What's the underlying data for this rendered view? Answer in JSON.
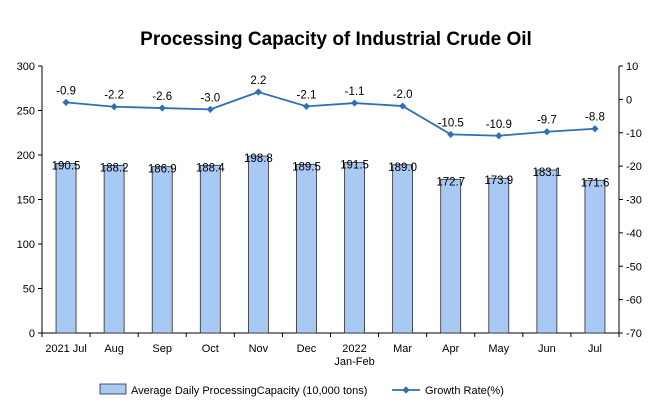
{
  "chart_data": {
    "type": "bar",
    "title": "Processing Capacity of Industrial Crude Oil",
    "categories": [
      "2021 Jul",
      "Aug",
      "Sep",
      "Oct",
      "Nov",
      "Dec",
      "2022\nJan-Feb",
      "Mar",
      "Apr",
      "May",
      "Jun",
      "Jul"
    ],
    "series": [
      {
        "name": "Average Daily ProcessingCapacity (10,000 tons)",
        "type": "bar",
        "axis": "left",
        "values": [
          190.5,
          188.2,
          186.9,
          188.4,
          198.8,
          189.5,
          191.5,
          189.0,
          172.7,
          173.9,
          183.1,
          171.6
        ],
        "labels": [
          "190.5",
          "188.2",
          "186.9",
          "188.4",
          "198.8",
          "189.5",
          "191.5",
          "189.0",
          "172.7",
          "173.9",
          "183.1",
          "171.6"
        ]
      },
      {
        "name": "Growth Rate(%)",
        "type": "line",
        "axis": "right",
        "values": [
          -0.9,
          -2.2,
          -2.6,
          -3.0,
          2.2,
          -2.1,
          -1.1,
          -2.0,
          -10.5,
          -10.9,
          -9.7,
          -8.8
        ],
        "labels": [
          "-0.9",
          "-2.2",
          "-2.6",
          "-3.0",
          "2.2",
          "-2.1",
          "-1.1",
          "-2.0",
          "-10.5",
          "-10.9",
          "-9.7",
          "-8.8"
        ]
      }
    ],
    "y_left": {
      "ylim": [
        0,
        300
      ],
      "ticks": [
        0,
        50,
        100,
        150,
        200,
        250,
        300
      ]
    },
    "y_right": {
      "ylim": [
        -70,
        10
      ],
      "ticks": [
        -70,
        -60,
        -50,
        -40,
        -30,
        -20,
        -10,
        0,
        10
      ]
    },
    "grid": false,
    "legend_position": "bottom",
    "colors": {
      "bar_fill": "#a9c9f5",
      "bar_stroke": "#2b2b2b",
      "line": "#2e6fb6",
      "axis": "#000000"
    }
  }
}
